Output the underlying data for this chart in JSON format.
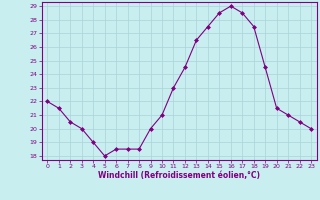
{
  "x": [
    0,
    1,
    2,
    3,
    4,
    5,
    6,
    7,
    8,
    9,
    10,
    11,
    12,
    13,
    14,
    15,
    16,
    17,
    18,
    19,
    20,
    21,
    22,
    23
  ],
  "y": [
    22,
    21.5,
    20.5,
    20,
    19,
    18,
    18.5,
    18.5,
    18.5,
    20,
    21,
    23,
    24.5,
    26.5,
    27.5,
    28.5,
    29,
    28.5,
    27.5,
    24.5,
    21.5,
    21,
    20.5,
    20
  ],
  "line_color": "#800080",
  "marker": "D",
  "marker_size": 2.0,
  "bg_color": "#c8eef0",
  "grid_color": "#aad4d8",
  "xlabel": "Windchill (Refroidissement éolien,°C)",
  "xlabel_color": "#800080",
  "tick_color": "#800080",
  "spine_color": "#800080",
  "ylim": [
    18,
    29
  ],
  "yticks": [
    18,
    19,
    20,
    21,
    22,
    23,
    24,
    25,
    26,
    27,
    28,
    29
  ],
  "xticks": [
    0,
    1,
    2,
    3,
    4,
    5,
    6,
    7,
    8,
    9,
    10,
    11,
    12,
    13,
    14,
    15,
    16,
    17,
    18,
    19,
    20,
    21,
    22,
    23
  ],
  "xlim": [
    -0.5,
    23.5
  ]
}
